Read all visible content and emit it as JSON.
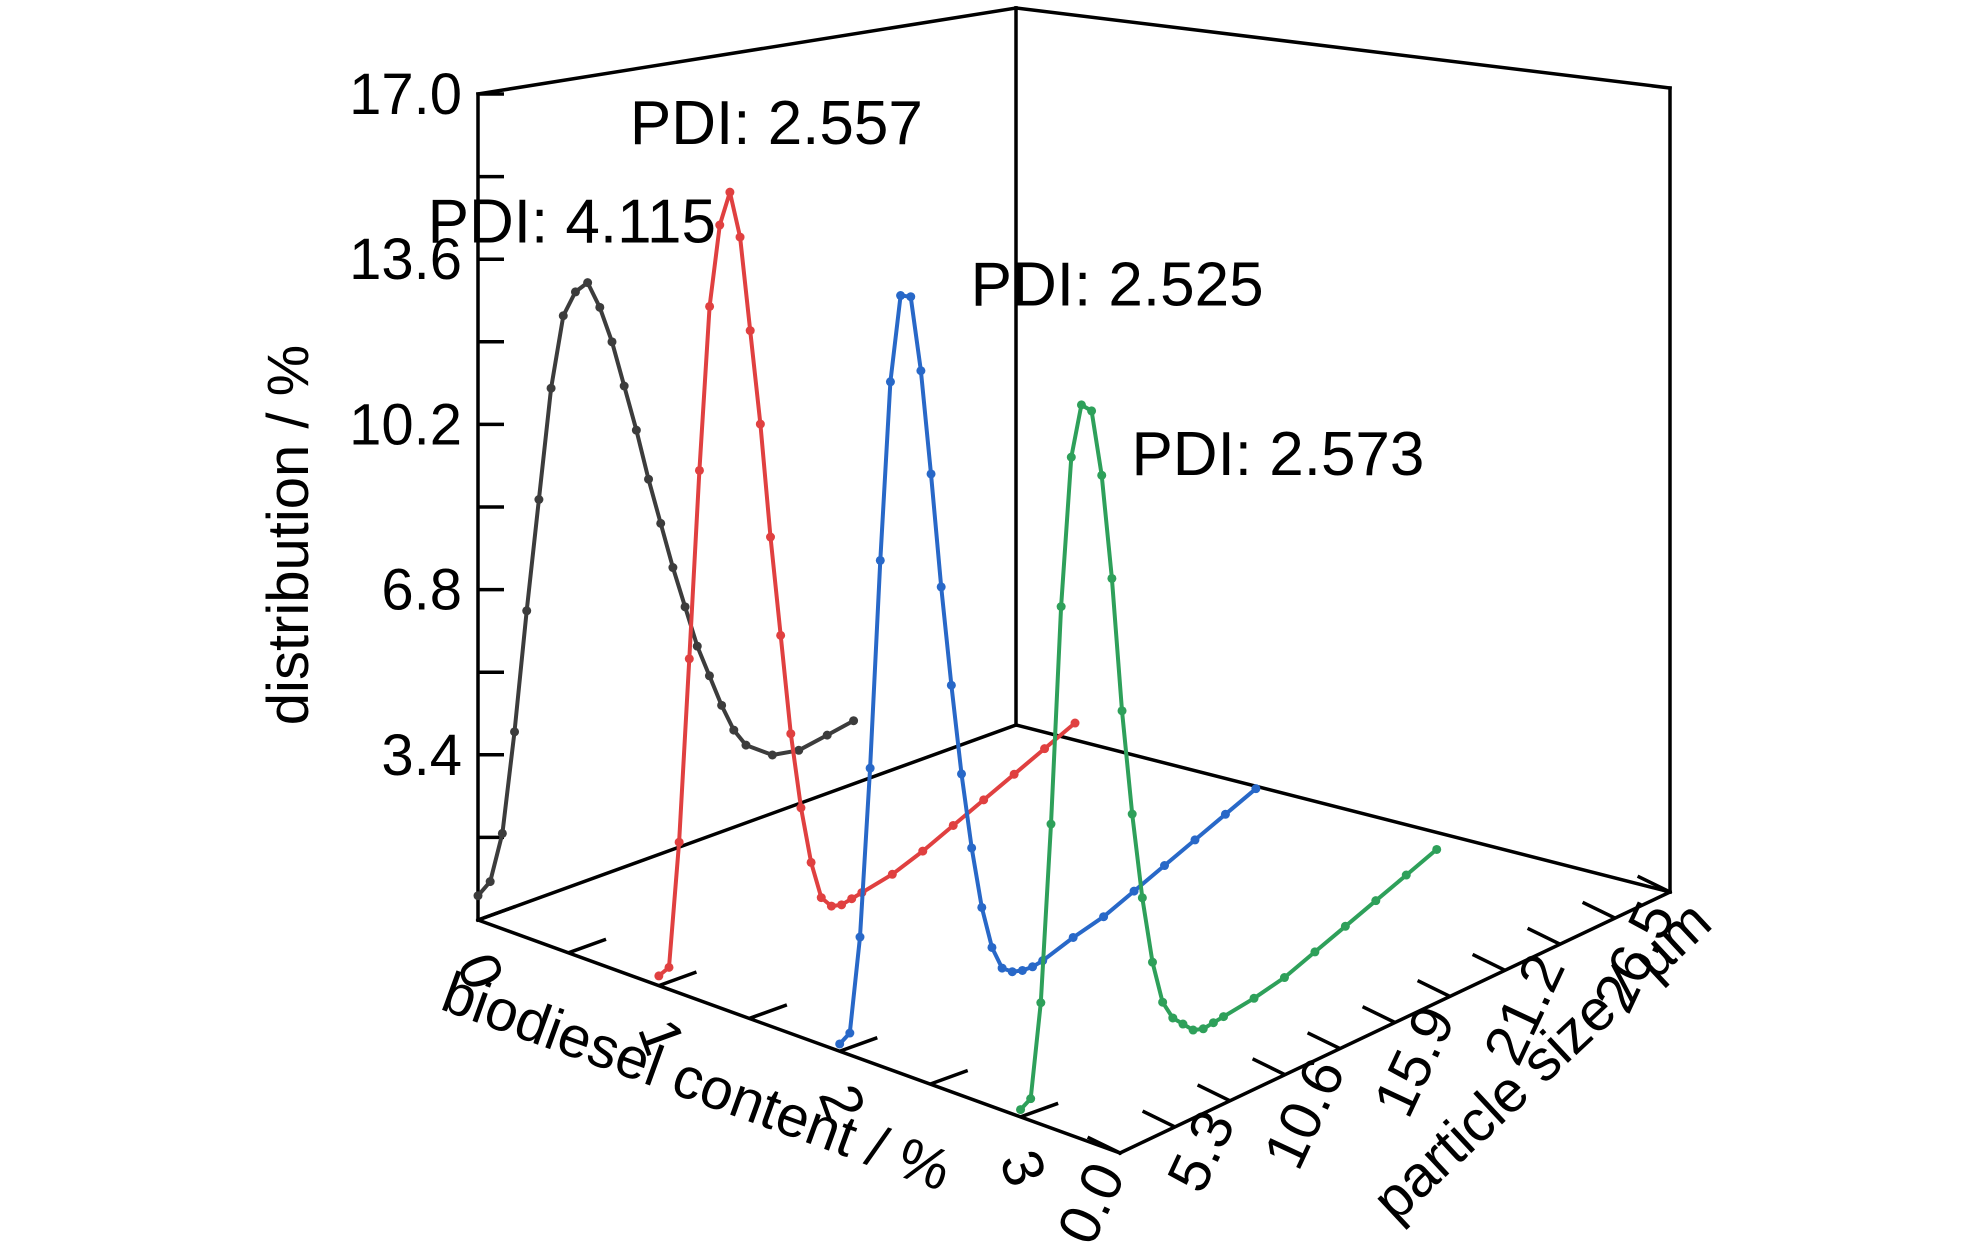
{
  "chart_data": {
    "type": "line",
    "z_label": "distribution / %",
    "z_ticks": [
      "3.4",
      "6.8",
      "10.2",
      "13.6",
      "17.0"
    ],
    "z_range": [
      0,
      17.0
    ],
    "x_label": "biodiesel content / %",
    "x_ticks": [
      "0",
      "1",
      "2",
      "3"
    ],
    "y_label": "particle size / µm",
    "y_ticks": [
      "0.0",
      "5.3",
      "10.6",
      "15.9",
      "21.2",
      "26.5"
    ],
    "y_range": [
      0,
      26.5
    ],
    "grid": false,
    "series": [
      {
        "biodiesel": 0,
        "annotation": "PDI: 4.115",
        "color": "#3c3c3c",
        "particle_size": [
          0.0,
          0.6,
          1.2,
          1.8,
          2.4,
          3.0,
          3.6,
          4.2,
          4.8,
          5.4,
          6.0,
          6.6,
          7.2,
          7.8,
          8.4,
          9.0,
          9.6,
          10.2,
          10.8,
          11.4,
          12.0,
          12.6,
          13.2,
          14.5,
          15.8,
          17.2,
          18.5
        ],
        "distribution": [
          0.5,
          0.7,
          1.6,
          3.6,
          6.0,
          8.2,
          10.4,
          11.8,
          12.2,
          12.3,
          11.7,
          10.9,
          9.9,
          8.9,
          7.8,
          6.8,
          5.8,
          4.9,
          4.0,
          3.3,
          2.6,
          2.0,
          1.6,
          1.2,
          1.1,
          1.2,
          1.3
        ]
      },
      {
        "biodiesel": 1,
        "annotation": "PDI: 2.557",
        "color": "#e04040",
        "particle_size": [
          0.0,
          0.5,
          1.0,
          1.5,
          2.0,
          2.5,
          3.0,
          3.5,
          4.0,
          4.5,
          5.0,
          5.5,
          6.0,
          6.5,
          7.0,
          7.5,
          8.0,
          8.5,
          9.0,
          9.5,
          10.0,
          11.5,
          13.0,
          14.5,
          16.0,
          17.5,
          19.0,
          20.5
        ],
        "distribution": [
          0.2,
          0.3,
          2.8,
          6.5,
          10.3,
          13.6,
          15.2,
          15.8,
          14.8,
          12.8,
          10.8,
          8.4,
          6.3,
          4.2,
          2.6,
          1.4,
          0.6,
          0.35,
          0.3,
          0.35,
          0.4,
          0.55,
          0.8,
          1.1,
          1.4,
          1.7,
          2.0,
          2.3
        ]
      },
      {
        "biodiesel": 2,
        "annotation": "PDI: 2.525",
        "color": "#2868c8",
        "particle_size": [
          0.0,
          0.5,
          1.0,
          1.5,
          2.0,
          2.5,
          3.0,
          3.5,
          4.0,
          4.5,
          5.0,
          5.5,
          6.0,
          6.5,
          7.0,
          7.5,
          8.0,
          8.5,
          9.0,
          9.5,
          10.0,
          11.5,
          13.0,
          14.5,
          16.0,
          17.5,
          19.0,
          20.5
        ],
        "distribution": [
          0.15,
          0.3,
          2.2,
          5.6,
          9.8,
          13.4,
          15.1,
          15.0,
          13.4,
          11.2,
          8.8,
          6.7,
          4.8,
          3.2,
          1.9,
          1.0,
          0.5,
          0.35,
          0.3,
          0.3,
          0.35,
          0.6,
          0.8,
          1.1,
          1.4,
          1.7,
          2.0,
          2.3
        ]
      },
      {
        "biodiesel": 3,
        "annotation": "PDI: 2.573",
        "color": "#2ea05a",
        "particle_size": [
          0.0,
          0.5,
          1.0,
          1.5,
          2.0,
          2.5,
          3.0,
          3.5,
          4.0,
          4.5,
          5.0,
          5.5,
          6.0,
          6.5,
          7.0,
          7.5,
          8.0,
          8.5,
          9.0,
          9.5,
          10.0,
          11.5,
          13.0,
          14.5,
          16.0,
          17.5,
          19.0,
          20.5
        ],
        "distribution": [
          0.15,
          0.3,
          2.2,
          5.8,
          10.2,
          13.2,
          14.2,
          14.0,
          12.6,
          10.4,
          7.6,
          5.4,
          3.6,
          2.2,
          1.3,
          0.9,
          0.7,
          0.5,
          0.45,
          0.5,
          0.55,
          0.7,
          0.9,
          1.2,
          1.5,
          1.8,
          2.1,
          2.4
        ]
      }
    ]
  }
}
